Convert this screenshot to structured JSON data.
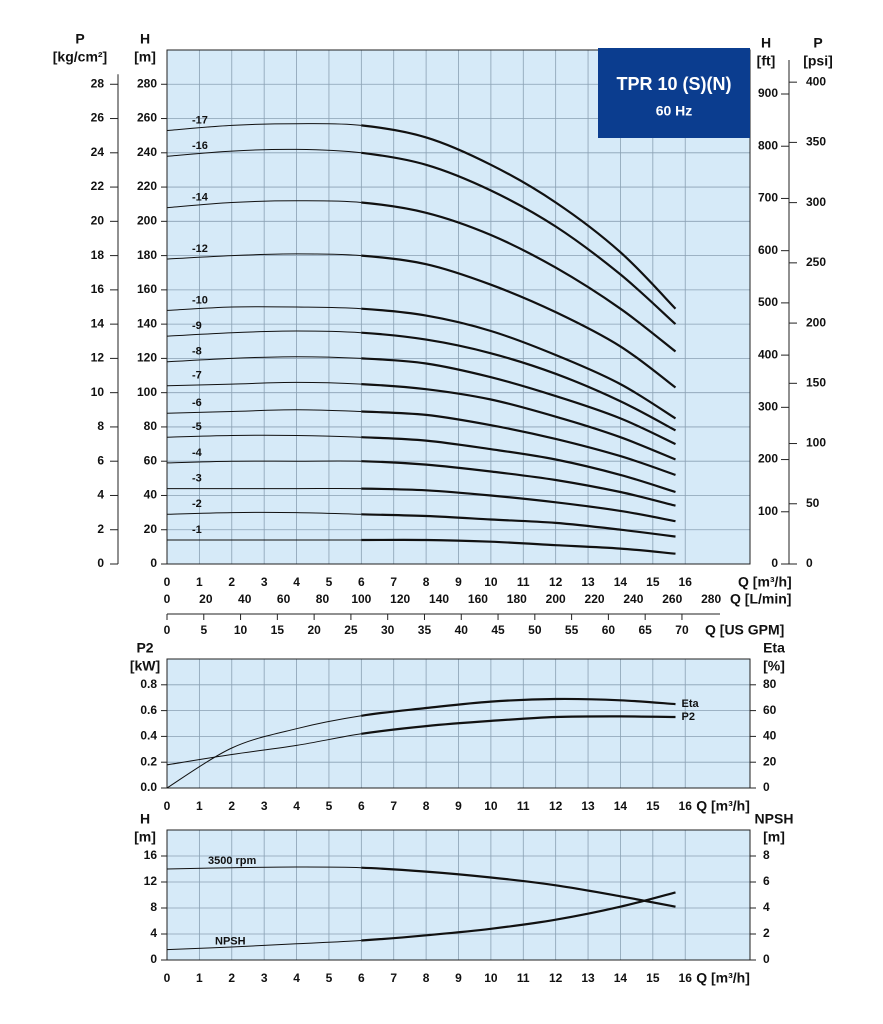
{
  "chart_data": [
    {
      "type": "line",
      "badge": {
        "title": "TPR 10 (S)(N)",
        "subtitle": "60 Hz",
        "color": "#0b3d8f"
      },
      "background": "#d6eaf8",
      "grid": true,
      "color": "#111111",
      "x": [
        0,
        2,
        4,
        6,
        8,
        10,
        12,
        14,
        15.7
      ],
      "xlim": [
        0,
        18
      ],
      "xticks": [
        0,
        1,
        2,
        3,
        4,
        5,
        6,
        7,
        8,
        9,
        10,
        11,
        12,
        13,
        14,
        15,
        16
      ],
      "xlabel": "Q [m³/h]",
      "x2": {
        "label": "Q [L/min]",
        "lim": [
          0,
          300
        ],
        "ticks": [
          0,
          20,
          40,
          60,
          80,
          100,
          120,
          140,
          160,
          180,
          200,
          220,
          240,
          260,
          280
        ]
      },
      "x3": {
        "label": "Q [US GPM]",
        "lim": [
          0,
          79.25
        ],
        "ticks": [
          0,
          5,
          10,
          15,
          20,
          25,
          30,
          35,
          40,
          45,
          50,
          55,
          60,
          65,
          70
        ]
      },
      "ylabel": "H",
      "yunit": "[m]",
      "ylim": [
        0,
        300
      ],
      "yticks": [
        0,
        20,
        40,
        60,
        80,
        100,
        120,
        140,
        160,
        180,
        200,
        220,
        240,
        260,
        280
      ],
      "p_axis": {
        "label": "P",
        "unit": "[kg/cm²]",
        "lim": [
          0,
          30
        ],
        "ticks": [
          0,
          2,
          4,
          6,
          8,
          10,
          12,
          14,
          16,
          18,
          20,
          22,
          24,
          26,
          28
        ]
      },
      "ft_axis": {
        "label": "H",
        "unit": "[ft]",
        "lim": [
          0,
          984.25
        ],
        "ticks": [
          0,
          100,
          200,
          300,
          400,
          500,
          600,
          700,
          800,
          900
        ]
      },
      "psi_axis": {
        "label": "P",
        "unit": "[psi]",
        "lim": [
          0,
          426.7
        ],
        "ticks": [
          0,
          50,
          100,
          150,
          200,
          250,
          300,
          350,
          400
        ]
      },
      "label_position": "start",
      "series": [
        {
          "name": "-17",
          "values": [
            253,
            256,
            257,
            256,
            249,
            233,
            211,
            182,
            149
          ]
        },
        {
          "name": "-16",
          "values": [
            238,
            241,
            242,
            240,
            233,
            218,
            197,
            169,
            140
          ]
        },
        {
          "name": "-14",
          "values": [
            208,
            211,
            212,
            211,
            205,
            192,
            173,
            149,
            124
          ]
        },
        {
          "name": "-12",
          "values": [
            178,
            180,
            181,
            180,
            175,
            163,
            147,
            127,
            103
          ]
        },
        {
          "name": "-10",
          "values": [
            148,
            150,
            150,
            149,
            145,
            136,
            122,
            105,
            85
          ]
        },
        {
          "name": "-9",
          "values": [
            133,
            135,
            136,
            135,
            131,
            123,
            111,
            95,
            78
          ]
        },
        {
          "name": "-8",
          "values": [
            118,
            120,
            121,
            120,
            117,
            109,
            98,
            85,
            70
          ]
        },
        {
          "name": "-7",
          "values": [
            104,
            105,
            106,
            105,
            102,
            96,
            86,
            74,
            61
          ]
        },
        {
          "name": "-6",
          "values": [
            88,
            89,
            90,
            89,
            87,
            81,
            73,
            63,
            52
          ]
        },
        {
          "name": "-5",
          "values": [
            74,
            75,
            75,
            74,
            72,
            67,
            61,
            52,
            42
          ]
        },
        {
          "name": "-4",
          "values": [
            59,
            60,
            60,
            60,
            58,
            54,
            49,
            42,
            34
          ]
        },
        {
          "name": "-3",
          "values": [
            44,
            44,
            44,
            44,
            43,
            40,
            36,
            31,
            25
          ]
        },
        {
          "name": "-2",
          "values": [
            29,
            30,
            30,
            29,
            28,
            26,
            24,
            20,
            16
          ]
        },
        {
          "name": "-1",
          "values": [
            14,
            14,
            14,
            14,
            14,
            13,
            11,
            9,
            6
          ]
        }
      ]
    },
    {
      "type": "line",
      "background": "#d6eaf8",
      "grid": true,
      "color": "#111111",
      "x": [
        0,
        2,
        4,
        6,
        8,
        10,
        12,
        14,
        15.7
      ],
      "xlim": [
        0,
        18
      ],
      "xticks": [
        0,
        1,
        2,
        3,
        4,
        5,
        6,
        7,
        8,
        9,
        10,
        11,
        12,
        13,
        14,
        15,
        16
      ],
      "xlabel": "Q [m³/h]",
      "ylabel": "P2",
      "yunit": "[kW]",
      "ylim": [
        0,
        1.0
      ],
      "yticks": [
        {
          "value": 0,
          "label": "0.0"
        },
        0.2,
        0.4,
        0.6,
        0.8
      ],
      "y2label": "Eta",
      "y2unit": "[%]",
      "y2lim": [
        0,
        100
      ],
      "y2ticks": [
        0,
        20,
        40,
        60,
        80
      ],
      "label_position": "end",
      "series": [
        {
          "name": "Eta",
          "axis": "y2",
          "values": [
            0,
            31,
            46,
            56,
            62,
            67,
            69,
            68,
            65
          ]
        },
        {
          "name": "P2",
          "axis": "y",
          "values": [
            0.18,
            0.26,
            0.33,
            0.42,
            0.48,
            0.52,
            0.55,
            0.555,
            0.55
          ]
        }
      ]
    },
    {
      "type": "line",
      "background": "#d6eaf8",
      "grid": true,
      "color": "#111111",
      "x": [
        0,
        2,
        4,
        6,
        8,
        10,
        12,
        14,
        15.7
      ],
      "xlim": [
        0,
        18
      ],
      "xticks": [
        0,
        1,
        2,
        3,
        4,
        5,
        6,
        7,
        8,
        9,
        10,
        11,
        12,
        13,
        14,
        15,
        16
      ],
      "xlabel": "Q [m³/h]",
      "ylabel": "H",
      "yunit": "[m]",
      "ylim": [
        0,
        20
      ],
      "yticks": [
        0,
        4,
        8,
        12,
        16
      ],
      "y2label": "NPSH",
      "y2unit": "[m]",
      "y2lim": [
        0,
        10
      ],
      "y2ticks": [
        0,
        2,
        4,
        6,
        8
      ],
      "label_position": "start",
      "series": [
        {
          "name": "3500 rpm",
          "axis": "y",
          "values": [
            14,
            14.2,
            14.3,
            14.2,
            13.6,
            12.7,
            11.5,
            9.8,
            8.2
          ]
        },
        {
          "name": "NPSH",
          "axis": "y2",
          "values": [
            0.8,
            1.0,
            1.25,
            1.5,
            1.9,
            2.4,
            3.1,
            4.1,
            5.2
          ]
        }
      ]
    }
  ]
}
